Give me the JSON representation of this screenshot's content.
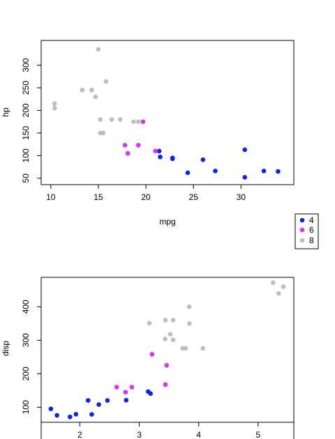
{
  "chart_data": [
    {
      "type": "scatter",
      "xlabel": "mpg",
      "ylabel": "hp",
      "xlim": [
        9.5,
        34.6
      ],
      "ylim": [
        45,
        344
      ],
      "xticks": [
        10,
        15,
        20,
        25,
        30
      ],
      "yticks": [
        50,
        100,
        150,
        200,
        250,
        300
      ],
      "grid": false,
      "legend_position": "bottom-right",
      "series": [
        {
          "name": "4",
          "color": "#0b22f5",
          "points": [
            [
              21.4,
              110
            ],
            [
              21.5,
              97
            ],
            [
              22.8,
              93
            ],
            [
              22.8,
              95
            ],
            [
              24.4,
              62
            ],
            [
              26.0,
              91
            ],
            [
              27.3,
              66
            ],
            [
              30.4,
              52
            ],
            [
              30.4,
              113
            ],
            [
              32.4,
              66
            ],
            [
              33.9,
              65
            ]
          ]
        },
        {
          "name": "6",
          "color": "#d931f5",
          "points": [
            [
              17.8,
              123
            ],
            [
              18.1,
              105
            ],
            [
              19.2,
              123
            ],
            [
              19.7,
              175
            ],
            [
              21.0,
              110
            ]
          ]
        },
        {
          "name": "8",
          "color": "#bebebe",
          "points": [
            [
              10.4,
              205
            ],
            [
              10.4,
              215
            ],
            [
              13.3,
              245
            ],
            [
              14.3,
              245
            ],
            [
              14.7,
              230
            ],
            [
              15.0,
              335
            ],
            [
              15.2,
              180
            ],
            [
              15.2,
              150
            ],
            [
              15.5,
              150
            ],
            [
              15.8,
              264
            ],
            [
              16.4,
              180
            ],
            [
              17.3,
              180
            ],
            [
              18.7,
              175
            ],
            [
              19.2,
              175
            ]
          ]
        }
      ]
    },
    {
      "type": "scatter",
      "xlabel": "",
      "ylabel": "disp",
      "xlim": [
        1.35,
        5.6
      ],
      "ylim": [
        55,
        488
      ],
      "xticks": [
        2,
        3,
        4,
        5
      ],
      "yticks": [
        100,
        200,
        300,
        400
      ],
      "grid": false,
      "series": [
        {
          "name": "4",
          "color": "#0b22f5",
          "points": [
            [
              1.513,
              95.1
            ],
            [
              1.615,
              75.7
            ],
            [
              1.835,
              71.1
            ],
            [
              1.935,
              79.0
            ],
            [
              2.14,
              120.3
            ],
            [
              2.2,
              78.7
            ],
            [
              2.32,
              108.0
            ],
            [
              2.465,
              120.1
            ],
            [
              2.78,
              121.0
            ],
            [
              3.15,
              146.7
            ],
            [
              3.19,
              140.8
            ]
          ]
        },
        {
          "name": "6",
          "color": "#d931f5",
          "points": [
            [
              2.62,
              160.0
            ],
            [
              2.77,
              145.0
            ],
            [
              2.875,
              160.0
            ],
            [
              3.215,
              258.0
            ],
            [
              3.44,
              167.6
            ],
            [
              3.44,
              167.6
            ],
            [
              3.46,
              225.0
            ]
          ]
        },
        {
          "name": "8",
          "color": "#bebebe",
          "points": [
            [
              3.17,
              351.0
            ],
            [
              3.435,
              304.0
            ],
            [
              3.44,
              360.0
            ],
            [
              3.52,
              318.0
            ],
            [
              3.57,
              360.0
            ],
            [
              3.57,
              301.0
            ],
            [
              3.73,
              275.8
            ],
            [
              3.78,
              275.8
            ],
            [
              3.84,
              400.0
            ],
            [
              3.845,
              350.0
            ],
            [
              4.07,
              275.8
            ],
            [
              5.25,
              472.0
            ],
            [
              5.345,
              440.0
            ],
            [
              5.424,
              460.0
            ]
          ]
        }
      ]
    }
  ],
  "legend": {
    "entries": [
      {
        "label": "4",
        "color": "#0b22f5"
      },
      {
        "label": "6",
        "color": "#d931f5"
      },
      {
        "label": "8",
        "color": "#bebebe"
      }
    ]
  }
}
